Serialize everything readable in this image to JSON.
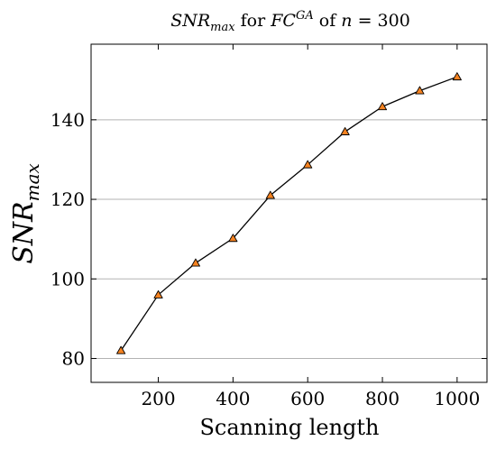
{
  "chart_data": {
    "type": "line",
    "title": {
      "part1": "SNR",
      "part1_sub": "max",
      "part2": " for ",
      "part3": "FC",
      "part3_sup": "GA",
      "part4": " of ",
      "part5": "n",
      "part6": " = 300"
    },
    "xlabel": "Scanning length",
    "ylabel": {
      "main": "SNR",
      "sub": "max"
    },
    "xlim": [
      20,
      1080
    ],
    "ylim": [
      74,
      159
    ],
    "x_ticks": [
      200,
      400,
      600,
      800,
      1000
    ],
    "y_ticks": [
      80,
      100,
      120,
      140
    ],
    "grid": {
      "y": true,
      "x": false
    },
    "series": [
      {
        "x": [
          100,
          200,
          300,
          400,
          500,
          600,
          700,
          800,
          900,
          1000
        ],
        "y": [
          82,
          96,
          104,
          110.2,
          121,
          128.7,
          137,
          143.3,
          147.3,
          150.8
        ],
        "line_color": "#000000",
        "marker": "triangle",
        "marker_color": "#f58220"
      }
    ]
  }
}
